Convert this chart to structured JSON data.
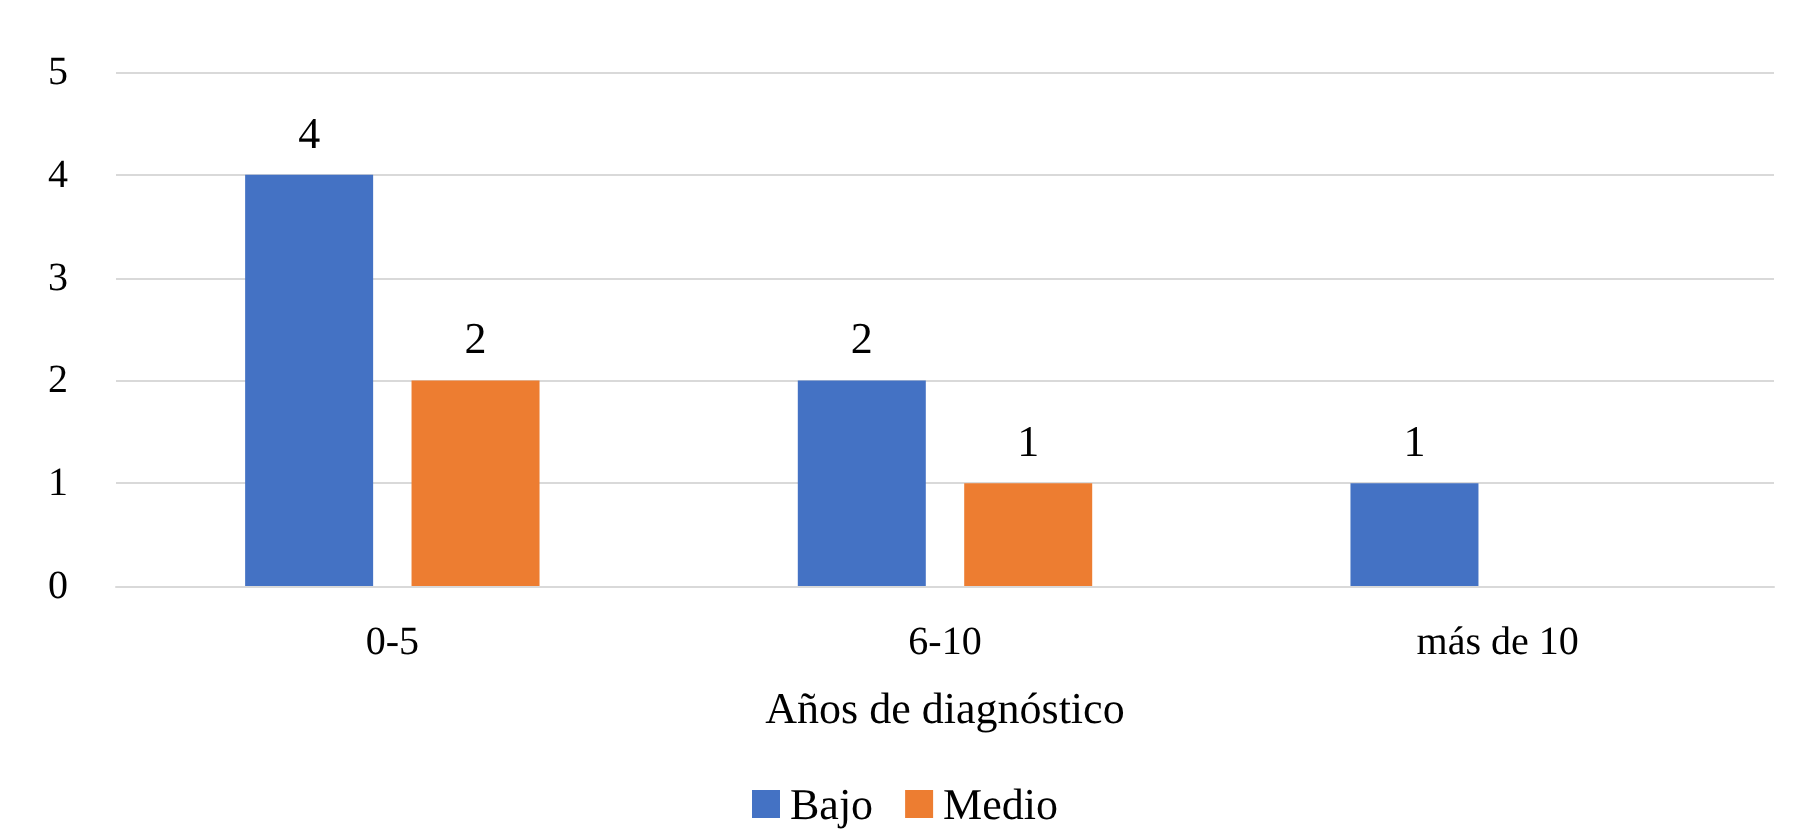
{
  "chart_data": {
    "type": "bar",
    "xlabel": "Años de diagnóstico",
    "categories": [
      "0-5",
      "6-10",
      "más de 10"
    ],
    "series": [
      {
        "name": "Bajo",
        "color": "#4472c4",
        "values": [
          4,
          2,
          1
        ]
      },
      {
        "name": "Medio",
        "color": "#ed7d31",
        "values": [
          2,
          1,
          null
        ]
      }
    ],
    "ylim": [
      0,
      5
    ],
    "yticks": [
      0,
      1,
      2,
      3,
      4,
      5
    ],
    "grid": "y",
    "legend": "bottom",
    "data_labels": true
  }
}
